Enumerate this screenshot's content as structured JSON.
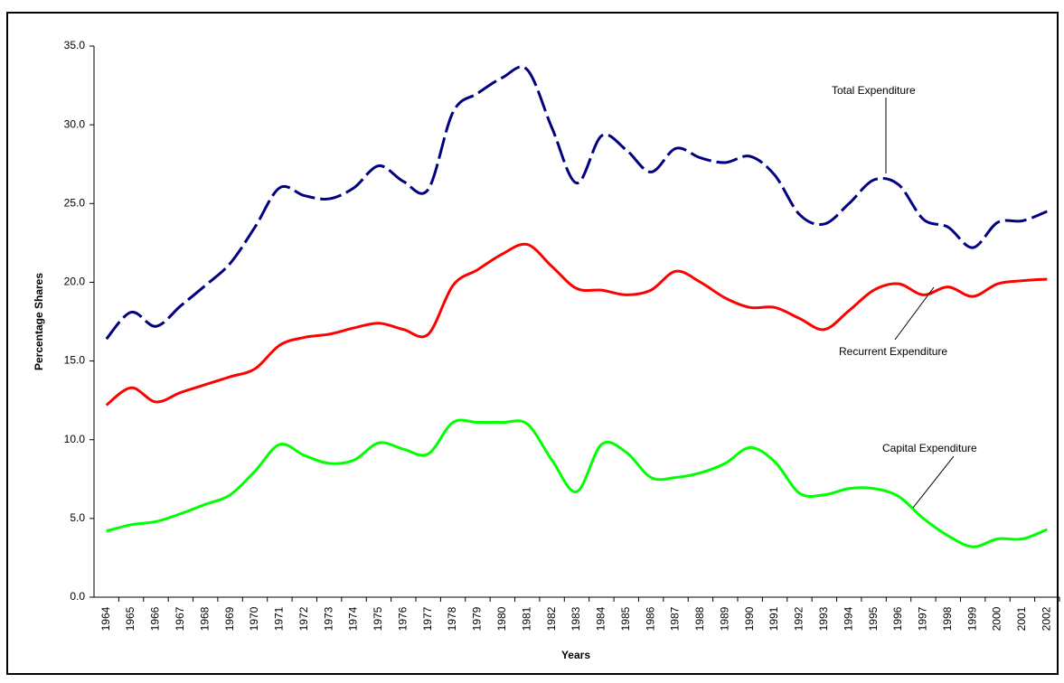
{
  "chart_data": {
    "type": "line",
    "x_label": "Years",
    "y_label": "Percentage Shares",
    "categories": [
      "1964",
      "1965",
      "1966",
      "1967",
      "1968",
      "1969",
      "1970",
      "1971",
      "1972",
      "1973",
      "1974",
      "1975",
      "1976",
      "1977",
      "1978",
      "1979",
      "1980",
      "1981",
      "1982",
      "1983",
      "1984",
      "1985",
      "1986",
      "1987",
      "1988",
      "1989",
      "1990",
      "1991",
      "1992",
      "1993",
      "1994",
      "1995",
      "1996",
      "1997",
      "1998",
      "1999",
      "2000",
      "2001",
      "2002"
    ],
    "series": [
      {
        "name": "Total Expenditure",
        "color": "#000080",
        "dashed": true,
        "values": [
          16.4,
          18.1,
          17.2,
          18.5,
          19.8,
          21.2,
          23.5,
          26.0,
          25.5,
          25.3,
          26.0,
          27.4,
          26.4,
          25.9,
          30.8,
          32.0,
          33.0,
          33.5,
          29.8,
          26.3,
          29.3,
          28.4,
          27.0,
          28.5,
          27.9,
          27.6,
          28.0,
          26.8,
          24.3,
          23.7,
          25.0,
          26.5,
          26.2,
          24.0,
          23.5,
          22.2,
          23.8,
          23.9,
          24.5
        ]
      },
      {
        "name": "Recurrent Expenditure",
        "color": "#ff0000",
        "dashed": false,
        "values": [
          12.2,
          13.3,
          12.4,
          13.0,
          13.5,
          14.0,
          14.5,
          16.0,
          16.5,
          16.7,
          17.1,
          17.4,
          17.0,
          16.7,
          19.8,
          20.8,
          21.8,
          22.4,
          21.0,
          19.6,
          19.5,
          19.2,
          19.5,
          20.7,
          20.0,
          19.0,
          18.4,
          18.4,
          17.7,
          17.0,
          18.2,
          19.5,
          19.9,
          19.2,
          19.7,
          19.1,
          19.9,
          20.1,
          20.2
        ]
      },
      {
        "name": "Capital Expenditure",
        "color": "#00ff00",
        "dashed": false,
        "values": [
          4.2,
          4.6,
          4.8,
          5.3,
          5.9,
          6.5,
          8.0,
          9.7,
          9.0,
          8.5,
          8.7,
          9.8,
          9.4,
          9.1,
          11.1,
          11.1,
          11.1,
          11.0,
          8.7,
          6.7,
          9.7,
          9.2,
          7.6,
          7.6,
          7.9,
          8.5,
          9.5,
          8.6,
          6.6,
          6.5,
          6.9,
          6.9,
          6.4,
          5.0,
          3.9,
          3.2,
          3.7,
          3.7,
          4.3
        ]
      }
    ],
    "ylim": [
      0,
      35
    ],
    "yticks": [
      {
        "value": 0,
        "label": "0.0"
      },
      {
        "value": 5,
        "label": "5.0"
      },
      {
        "value": 10,
        "label": "10.0"
      },
      {
        "value": 15,
        "label": "15.0"
      },
      {
        "value": 20,
        "label": "20.0"
      },
      {
        "value": 25,
        "label": "25.0"
      },
      {
        "value": 30,
        "label": "30.0"
      },
      {
        "value": 35,
        "label": "35.0"
      }
    ],
    "grid": false
  }
}
